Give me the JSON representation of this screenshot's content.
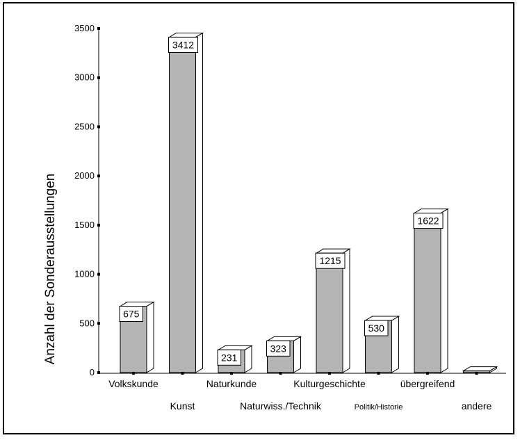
{
  "chart_data": {
    "type": "bar",
    "title": "",
    "xlabel": "",
    "ylabel": "Anzahl der Sonderausstellungen",
    "ylim": [
      0,
      3500
    ],
    "yticks": [
      0,
      500,
      1000,
      1500,
      2000,
      2500,
      3000,
      3500
    ],
    "categories": [
      "Volkskunde",
      "Kunst",
      "Naturkunde",
      "Naturwiss./Technik",
      "Kulturgeschichte",
      "Politik/Historie",
      "übergreifend",
      "andere"
    ],
    "values": [
      675,
      3412,
      231,
      323,
      1215,
      530,
      1622,
      17
    ],
    "value_labels": [
      "675",
      "3412",
      "231",
      "323",
      "1215",
      "530",
      "1622",
      ""
    ],
    "bar_color": "#b4b4b4",
    "grid": false,
    "style": "3d-bars"
  }
}
